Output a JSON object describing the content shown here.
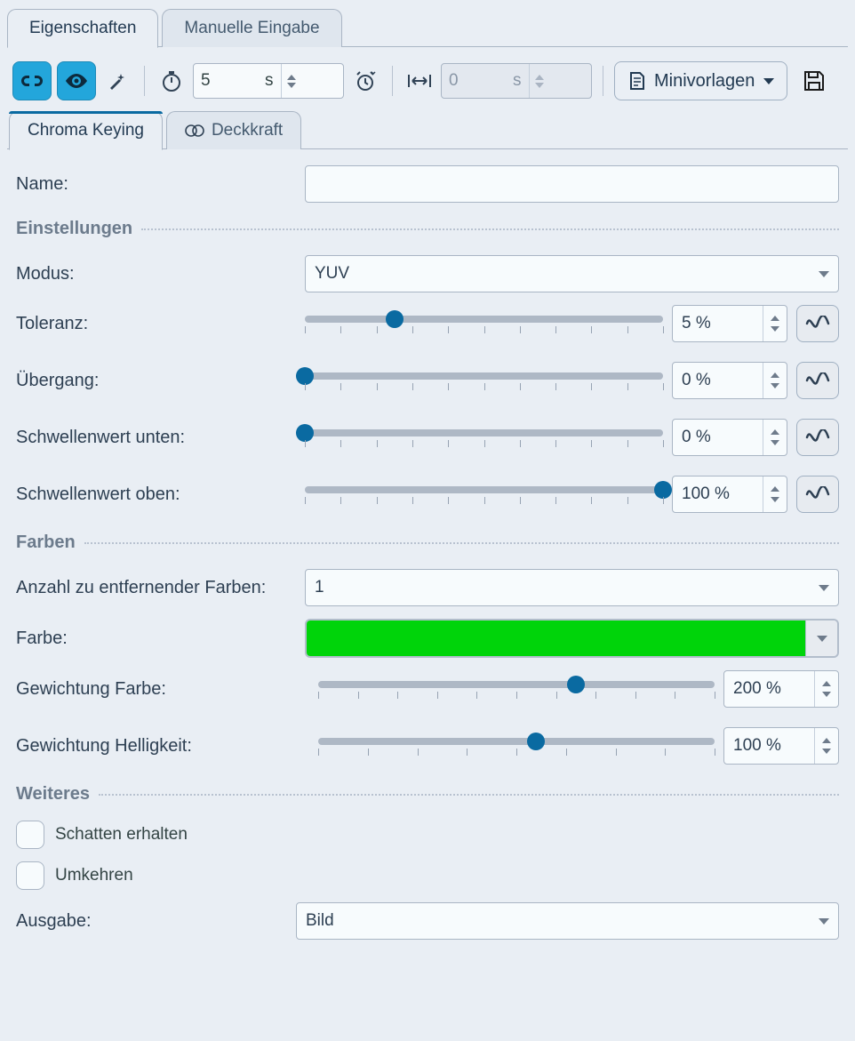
{
  "colors": {
    "page_bg": "#e9eef4",
    "tab_inactive_bg": "#dfe6ee",
    "border": "#a9b5c4",
    "accent": "#0a6aa1",
    "toolbar_active": "#23a6db",
    "text": "#2d3f52",
    "section_text": "#6c7b8c",
    "input_bg": "#f7fbfd",
    "disabled_bg": "#e3e8ef",
    "chroma_green": "#00d40a"
  },
  "top_tabs": {
    "properties": "Eigenschaften",
    "manual": "Manuelle Eingabe",
    "active": "properties"
  },
  "toolbar": {
    "duration": {
      "value": "5",
      "unit": "s"
    },
    "offset": {
      "value": "0",
      "unit": "s",
      "disabled": true
    },
    "mini_templates": "Minivorlagen"
  },
  "sub_tabs": {
    "chroma": "Chroma Keying",
    "opacity": "Deckkraft",
    "active": "chroma"
  },
  "fields": {
    "name_label": "Name:",
    "name_value": ""
  },
  "sections": {
    "settings": "Einstellungen",
    "colors": "Farben",
    "more": "Weiteres"
  },
  "settings": {
    "mode": {
      "label": "Modus:",
      "value": "YUV"
    },
    "tolerance": {
      "label": "Toleranz:",
      "value": "5 %",
      "percent": 25,
      "ticks": 11
    },
    "transition": {
      "label": "Übergang:",
      "value": "0 %",
      "percent": 0,
      "ticks": 11
    },
    "threshold_low": {
      "label": "Schwellenwert unten:",
      "value": "0 %",
      "percent": 0,
      "ticks": 11
    },
    "threshold_high": {
      "label": "Schwellenwert oben:",
      "value": "100 %",
      "percent": 100,
      "ticks": 11
    }
  },
  "colors_section": {
    "count": {
      "label": "Anzahl zu entfernender Farben:",
      "value": "1"
    },
    "color_label": "Farbe:",
    "weight_color": {
      "label": "Gewichtung Farbe:",
      "value": "200 %",
      "percent": 65,
      "ticks": 11
    },
    "weight_bright": {
      "label": "Gewichtung Helligkeit:",
      "value": "100 %",
      "percent": 55,
      "ticks": 9
    }
  },
  "more": {
    "keep_shadows": {
      "label": "Schatten erhalten",
      "checked": false
    },
    "invert": {
      "label": "Umkehren",
      "checked": false
    },
    "output": {
      "label": "Ausgabe:",
      "value": "Bild"
    }
  }
}
